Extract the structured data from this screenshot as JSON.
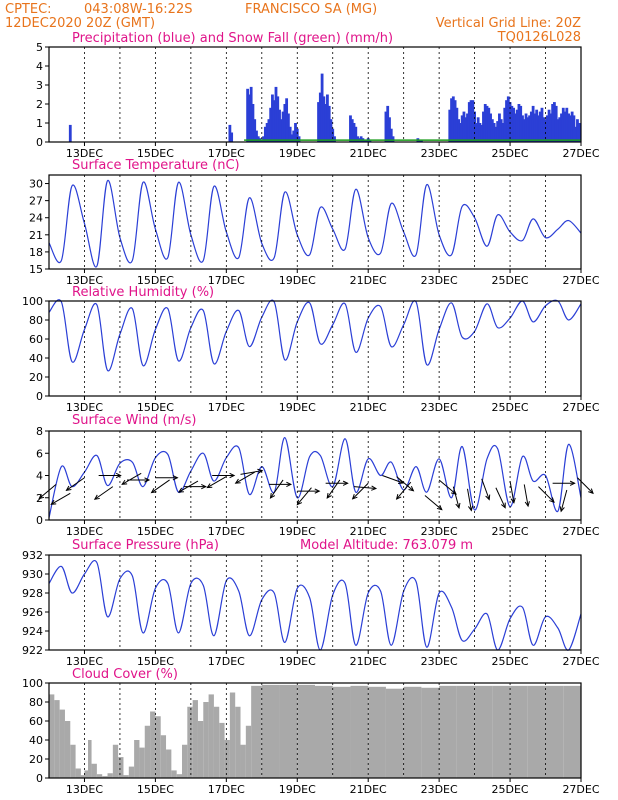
{
  "header": {
    "source": "CPTEC:",
    "coords": "043:08W-16:22S",
    "station": "FRANCISCO SA (MG)",
    "init_time": "12DEC2020 20Z (GMT)",
    "grid_note": "Vertical Grid Line: 20Z",
    "model_code": "TQ0126L028"
  },
  "x_ticks": [
    "13DEC",
    "15DEC",
    "17DEC",
    "19DEC",
    "21DEC",
    "23DEC",
    "25DEC",
    "27DEC"
  ],
  "model_altitude": "Model Altitude: 763.079 m",
  "colors": {
    "header": "#e8741c",
    "title": "#e0148a",
    "line": "#2b3fd6",
    "snow": "#1a9c1a",
    "cloud": "#a9a9a9",
    "arrow": "#000000"
  },
  "chart_data": [
    {
      "type": "bar",
      "title": "Precipitation (blue) and Snow Fall (green) (mm/h)",
      "x_range": [
        12.0,
        27.0
      ],
      "ylim": [
        0,
        5
      ],
      "yticks": [
        "0",
        "1",
        "2",
        "3",
        "4",
        "5"
      ],
      "series": [
        {
          "name": "Precipitation",
          "x": [
            12.6,
            17.1,
            17.15,
            17.6,
            17.65,
            17.7,
            17.75,
            17.8,
            17.85,
            17.9,
            17.95,
            18.0,
            18.05,
            18.1,
            18.15,
            18.2,
            18.25,
            18.3,
            18.35,
            18.4,
            18.45,
            18.5,
            18.55,
            18.6,
            18.65,
            18.7,
            18.75,
            18.8,
            18.85,
            18.9,
            18.95,
            19.0,
            19.05,
            19.6,
            19.65,
            19.7,
            19.75,
            19.8,
            19.85,
            19.9,
            19.95,
            20.0,
            20.05,
            20.5,
            20.55,
            20.6,
            20.65,
            20.7,
            20.75,
            20.8,
            20.85,
            20.9,
            20.95,
            21.0,
            21.05,
            21.5,
            21.55,
            21.6,
            21.65,
            21.7,
            22.4,
            22.45,
            22.5,
            23.3,
            23.35,
            23.4,
            23.45,
            23.5,
            23.55,
            23.6,
            23.65,
            23.7,
            23.75,
            23.8,
            23.85,
            23.9,
            23.95,
            24.0,
            24.05,
            24.1,
            24.15,
            24.2,
            24.25,
            24.3,
            24.35,
            24.4,
            24.45,
            24.5,
            24.55,
            24.6,
            24.65,
            24.7,
            24.75,
            24.8,
            24.85,
            24.9,
            24.95,
            25.0,
            25.05,
            25.1,
            25.15,
            25.2,
            25.25,
            25.3,
            25.35,
            25.4,
            25.45,
            25.5,
            25.55,
            25.6,
            25.65,
            25.7,
            25.75,
            25.8,
            25.85,
            25.9,
            25.95,
            26.0,
            26.05,
            26.1,
            26.15,
            26.2,
            26.25,
            26.3,
            26.35,
            26.4,
            26.45,
            26.5,
            26.55,
            26.6,
            26.65,
            26.7,
            26.75,
            26.8,
            26.85,
            26.9,
            26.95
          ],
          "values": [
            0.9,
            0.9,
            0.5,
            2.8,
            2.5,
            2.9,
            2.0,
            1.2,
            0.6,
            0.3,
            0.2,
            0.1,
            0.3,
            0.8,
            1.0,
            1.2,
            1.8,
            2.5,
            2.2,
            2.9,
            2.4,
            1.7,
            1.2,
            1.6,
            2.0,
            2.3,
            1.5,
            0.8,
            0.4,
            0.6,
            1.0,
            0.7,
            0.3,
            2.1,
            2.6,
            3.6,
            2.4,
            2.0,
            2.5,
            1.9,
            1.2,
            0.7,
            0.3,
            1.4,
            1.2,
            1.0,
            0.8,
            0.3,
            0.2,
            0.3,
            0.2,
            0.1,
            0.1,
            0.2,
            0.1,
            1.6,
            1.9,
            1.3,
            0.7,
            0.3,
            0.2,
            0.1,
            0.1,
            1.7,
            2.3,
            2.4,
            2.2,
            1.8,
            1.2,
            1.0,
            1.4,
            1.6,
            1.3,
            1.5,
            2.1,
            2.2,
            2.2,
            1.6,
            1.0,
            1.3,
            1.0,
            0.9,
            1.6,
            2.0,
            1.9,
            1.8,
            1.5,
            1.2,
            1.0,
            0.8,
            1.1,
            1.5,
            1.2,
            1.0,
            1.8,
            2.2,
            2.4,
            2.1,
            1.9,
            1.8,
            1.5,
            1.7,
            2.0,
            1.9,
            1.4,
            1.2,
            1.5,
            1.3,
            1.4,
            1.6,
            1.9,
            1.5,
            1.7,
            1.4,
            1.6,
            1.8,
            1.3,
            1.2,
            1.4,
            1.7,
            1.5,
            2.0,
            2.1,
            1.9,
            1.2,
            1.3,
            1.5,
            1.8,
            1.6,
            1.8,
            1.5,
            1.4,
            1.6,
            1.4,
            0.8,
            1.2,
            1.0
          ]
        },
        {
          "name": "Snow Fall",
          "x": [
            17.5,
            27.0
          ],
          "values": [
            0.1,
            0.1
          ]
        }
      ]
    },
    {
      "type": "line",
      "title": "Surface Temperature (nC)",
      "x_range": [
        12.0,
        27.0
      ],
      "ylim": [
        15,
        31.5
      ],
      "yticks": [
        "15",
        "18",
        "21",
        "24",
        "27",
        "30"
      ],
      "series": [
        {
          "name": "Temperature",
          "x": [
            12.0,
            12.35,
            12.65,
            13.0,
            13.35,
            13.65,
            14.0,
            14.35,
            14.65,
            15.0,
            15.35,
            15.65,
            16.0,
            16.35,
            16.65,
            17.0,
            17.35,
            17.65,
            18.0,
            18.35,
            18.65,
            19.0,
            19.35,
            19.65,
            20.0,
            20.35,
            20.65,
            21.0,
            21.35,
            21.65,
            22.0,
            22.35,
            22.65,
            23.0,
            23.35,
            23.65,
            24.0,
            24.35,
            24.65,
            25.0,
            25.35,
            25.65,
            26.0,
            26.35,
            26.65,
            27.0
          ],
          "values": [
            19.6,
            16.5,
            29.6,
            23.0,
            15.5,
            30.5,
            20.5,
            16.5,
            30.2,
            22.0,
            17.0,
            30.2,
            21.0,
            16.5,
            29.5,
            21.5,
            17.0,
            27.5,
            19.5,
            17.0,
            28.5,
            21.0,
            17.5,
            25.8,
            22.0,
            18.5,
            29.0,
            20.5,
            17.8,
            26.5,
            21.5,
            17.5,
            29.8,
            21.0,
            17.5,
            26.0,
            24.0,
            19.0,
            24.5,
            21.5,
            20.0,
            23.8,
            20.5,
            22.0,
            23.5,
            21.3
          ]
        }
      ]
    },
    {
      "type": "line",
      "title": "Relative Humidity (%)",
      "x_range": [
        12.0,
        27.0
      ],
      "ylim": [
        0,
        100
      ],
      "yticks": [
        "0",
        "20",
        "40",
        "60",
        "80",
        "100"
      ],
      "series": [
        {
          "name": "Relative Humidity",
          "x": [
            12.0,
            12.35,
            12.65,
            13.0,
            13.35,
            13.65,
            14.0,
            14.35,
            14.65,
            15.0,
            15.35,
            15.65,
            16.0,
            16.35,
            16.65,
            17.0,
            17.35,
            17.65,
            18.0,
            18.35,
            18.65,
            19.0,
            19.35,
            19.65,
            20.0,
            20.35,
            20.65,
            21.0,
            21.35,
            21.65,
            22.0,
            22.35,
            22.65,
            23.0,
            23.35,
            23.65,
            24.0,
            24.35,
            24.65,
            25.0,
            25.35,
            25.65,
            26.0,
            26.35,
            26.65,
            27.0
          ],
          "values": [
            88,
            99,
            36,
            70,
            96,
            27,
            65,
            92,
            32,
            70,
            92,
            37,
            72,
            90,
            34,
            68,
            90,
            52,
            83,
            99,
            38,
            78,
            98,
            55,
            75,
            97,
            46,
            82,
            94,
            52,
            75,
            99,
            33,
            70,
            98,
            62,
            68,
            97,
            72,
            82,
            100,
            78,
            95,
            100,
            80,
            97
          ]
        }
      ]
    },
    {
      "type": "line",
      "title": "Surface Wind (m/s)",
      "x_range": [
        12.0,
        27.0
      ],
      "ylim": [
        0,
        8
      ],
      "yticks": [
        "0",
        "2",
        "4",
        "6",
        "8"
      ],
      "series": [
        {
          "name": "Wind speed",
          "x": [
            12.0,
            12.35,
            12.65,
            13.0,
            13.35,
            13.65,
            14.0,
            14.35,
            14.65,
            15.0,
            15.35,
            15.65,
            16.0,
            16.35,
            16.65,
            17.0,
            17.35,
            17.65,
            18.0,
            18.35,
            18.65,
            19.0,
            19.35,
            19.65,
            20.0,
            20.35,
            20.65,
            21.0,
            21.35,
            21.65,
            22.0,
            22.35,
            22.65,
            23.0,
            23.35,
            23.65,
            24.0,
            24.35,
            24.65,
            25.0,
            25.35,
            25.65,
            26.0,
            26.35,
            26.65,
            27.0
          ],
          "values": [
            0.2,
            4.8,
            3.0,
            4.3,
            5.8,
            3.1,
            5.1,
            5.2,
            3.0,
            5.6,
            5.9,
            2.5,
            4.4,
            6.0,
            3.5,
            5.6,
            6.5,
            2.3,
            4.8,
            2.5,
            7.4,
            2.0,
            5.7,
            5.8,
            3.0,
            7.3,
            2.5,
            5.5,
            4.0,
            5.2,
            2.7,
            4.8,
            2.5,
            5.5,
            2.0,
            6.6,
            0.9,
            5.5,
            6.4,
            1.2,
            5.7,
            3.5,
            4.0,
            0.8,
            6.8,
            2.0
          ]
        },
        {
          "name": "Wind direction",
          "x": [
            12.2,
            12.6,
            13.0,
            13.4,
            13.8,
            14.2,
            14.6,
            15.0,
            15.4,
            15.8,
            16.2,
            16.6,
            17.0,
            17.4,
            17.8,
            18.2,
            18.6,
            19.0,
            19.4,
            19.8,
            20.2,
            20.6,
            21.0,
            21.4,
            21.8,
            22.2,
            22.6,
            23.0,
            23.4,
            23.8,
            24.2,
            24.6,
            25.0,
            25.4,
            25.8,
            26.2,
            26.6,
            26.9
          ],
          "speed": [
            3.2,
            2.4,
            3.8,
            4.0,
            3.0,
            3.6,
            4.2,
            3.8,
            3.6,
            3.0,
            3.5,
            4.0,
            3.9,
            4.1,
            4.3,
            3.2,
            3.6,
            2.6,
            2.9,
            3.3,
            3.6,
            3.0,
            3.3,
            4.0,
            3.9,
            3.4,
            2.2,
            3.6,
            3.0,
            2.8,
            3.7,
            2.9,
            3.5,
            3.2,
            3.0,
            3.3,
            2.7,
            3.8
          ],
          "dir_deg": [
            230,
            240,
            235,
            90,
            235,
            90,
            240,
            90,
            235,
            90,
            240,
            90,
            240,
            80,
            240,
            90,
            215,
            90,
            220,
            90,
            215,
            95,
            225,
            110,
            130,
            220,
            130,
            130,
            165,
            170,
            160,
            155,
            170,
            170,
            135,
            90,
            195,
            135
          ]
        }
      ]
    },
    {
      "type": "line",
      "title": "Surface Pressure (hPa)",
      "x_range": [
        12.0,
        27.0
      ],
      "ylim": [
        922,
        932
      ],
      "yticks": [
        "922",
        "924",
        "926",
        "928",
        "930",
        "932"
      ],
      "series": [
        {
          "name": "Pressure",
          "x": [
            12.0,
            12.35,
            12.65,
            13.0,
            13.35,
            13.65,
            14.0,
            14.35,
            14.65,
            15.0,
            15.35,
            15.65,
            16.0,
            16.35,
            16.65,
            17.0,
            17.35,
            17.65,
            18.0,
            18.35,
            18.65,
            19.0,
            19.35,
            19.65,
            20.0,
            20.35,
            20.65,
            21.0,
            21.35,
            21.65,
            22.0,
            22.35,
            22.65,
            23.0,
            23.35,
            23.65,
            24.0,
            24.35,
            24.65,
            25.0,
            25.35,
            25.65,
            26.0,
            26.35,
            26.65,
            27.0
          ],
          "values": [
            929.0,
            930.8,
            928.0,
            930.0,
            931.2,
            925.5,
            929.5,
            929.8,
            923.8,
            928.5,
            929.0,
            923.8,
            929.0,
            928.8,
            923.5,
            929.3,
            928.2,
            923.5,
            927.3,
            928.0,
            922.8,
            928.5,
            927.5,
            922.0,
            927.8,
            929.0,
            922.5,
            928.0,
            928.2,
            922.5,
            928.2,
            929.2,
            922.3,
            928.0,
            926.5,
            923.0,
            924.2,
            925.8,
            922.0,
            925.3,
            926.5,
            922.5,
            925.5,
            924.3,
            922.0,
            925.8
          ]
        }
      ]
    },
    {
      "type": "area",
      "title": "Cloud Cover (%)",
      "x_range": [
        12.0,
        27.0
      ],
      "ylim": [
        0,
        100
      ],
      "yticks": [
        "0",
        "20",
        "40",
        "60",
        "80",
        "100"
      ],
      "series": [
        {
          "name": "Cloud Cover",
          "x": [
            12.0,
            12.15,
            12.3,
            12.45,
            12.6,
            12.75,
            12.9,
            13.0,
            13.1,
            13.2,
            13.35,
            13.5,
            13.65,
            13.8,
            13.95,
            14.1,
            14.25,
            14.4,
            14.55,
            14.7,
            14.85,
            15.0,
            15.15,
            15.3,
            15.45,
            15.6,
            15.75,
            15.9,
            16.05,
            16.2,
            16.35,
            16.5,
            16.65,
            16.8,
            16.95,
            17.1,
            17.25,
            17.4,
            17.55,
            17.7,
            18.0,
            18.5,
            19.0,
            19.5,
            20.0,
            20.5,
            21.0,
            21.5,
            22.0,
            22.5,
            23.0,
            23.5,
            24.0,
            24.5,
            25.0,
            25.5,
            26.0,
            26.5,
            27.0
          ],
          "values": [
            88,
            82,
            72,
            60,
            35,
            10,
            3,
            8,
            40,
            15,
            4,
            2,
            5,
            35,
            22,
            3,
            12,
            40,
            32,
            55,
            70,
            65,
            45,
            30,
            8,
            4,
            35,
            75,
            82,
            60,
            80,
            88,
            75,
            58,
            40,
            90,
            75,
            35,
            55,
            97,
            98,
            98,
            98,
            97,
            96,
            97,
            96,
            94,
            96,
            95,
            97,
            97,
            97,
            97,
            97,
            97,
            97,
            97,
            97
          ]
        }
      ]
    }
  ]
}
